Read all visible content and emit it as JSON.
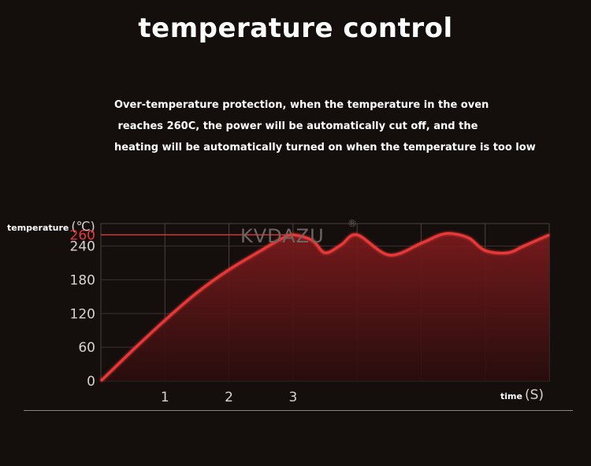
{
  "title": "temperature control",
  "description": [
    "Over-temperature protection, when the temperature in the oven",
    " reaches 260C, the power will be automatically cut off, and the",
    "heating will be automatically turned on when the temperature is too low"
  ],
  "brand": {
    "watermark": "KVDAZU",
    "mark": "®"
  },
  "colors": {
    "accent": "#e33434",
    "background": "#140e0d",
    "fill": "#5a1416"
  },
  "chart_data": {
    "type": "area",
    "title": "",
    "ylabel_word": "temperature",
    "ylabel_unit": "(℃)",
    "xlabel_word": "time",
    "xlabel_unit": "(S)",
    "yticks": [
      0,
      60,
      120,
      180,
      240
    ],
    "highlight_tick": 260,
    "xticks": [
      1,
      2,
      3
    ],
    "xlim": [
      0,
      7
    ],
    "ylim": [
      0,
      280
    ],
    "grid": true,
    "threshold_line": 260,
    "series": [
      {
        "x": [
          0,
          0.5,
          1,
          1.5,
          2,
          2.5,
          2.8,
          3,
          3.3,
          3.5,
          3.75,
          4,
          4.5,
          5,
          5.3,
          5.5,
          5.75,
          6,
          6.35,
          6.6,
          7
        ],
        "y": [
          0,
          55,
          108,
          157,
          198,
          232,
          252,
          260,
          250,
          228,
          242,
          260,
          224,
          245,
          260,
          262,
          254,
          232,
          228,
          240,
          260
        ]
      }
    ]
  }
}
